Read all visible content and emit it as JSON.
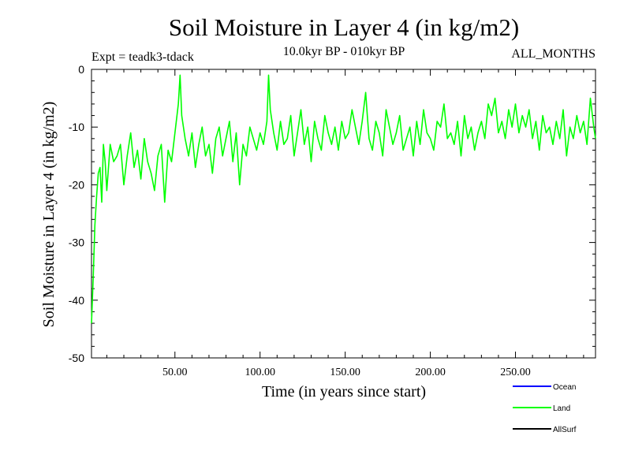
{
  "chart_data": {
    "type": "line",
    "title": "Soil Moisture in Layer 4 (in kg/m2)",
    "experiment_label": "Expt = teadk3-tdack",
    "period_label": "10.0kyr BP - 010kyr BP",
    "months_label": "ALL_MONTHS",
    "xlabel": "Time (in years since start)",
    "ylabel": "Soil Moisture in Layer 4 (in kg/m2)",
    "xlim": [
      1,
      297
    ],
    "ylim": [
      -50,
      0
    ],
    "x_ticks": [
      50,
      100,
      150,
      200,
      250
    ],
    "x_tick_labels": [
      "50.00",
      "100.00",
      "150.00",
      "200.00",
      "250.00"
    ],
    "y_ticks": [
      0,
      -10,
      -20,
      -30,
      -40,
      -50
    ],
    "y_tick_labels": [
      "0",
      "-10",
      "-20",
      "-30",
      "-40",
      "-50"
    ],
    "grid": false,
    "legend_position": "bottom-right",
    "series": [
      {
        "name": "Ocean",
        "color": "#0000ff",
        "x": [],
        "values": []
      },
      {
        "name": "Land",
        "color": "#00ff00",
        "x": [
          1,
          2,
          3,
          4,
          5,
          6,
          7,
          8,
          9,
          10,
          12,
          14,
          16,
          18,
          20,
          22,
          24,
          26,
          28,
          30,
          32,
          34,
          36,
          38,
          40,
          42,
          44,
          46,
          48,
          50,
          52,
          53,
          54,
          56,
          58,
          60,
          62,
          64,
          66,
          68,
          70,
          72,
          74,
          76,
          78,
          80,
          82,
          84,
          86,
          88,
          90,
          92,
          94,
          96,
          98,
          100,
          102,
          104,
          105,
          106,
          108,
          110,
          112,
          114,
          116,
          118,
          120,
          122,
          124,
          126,
          128,
          130,
          132,
          134,
          136,
          138,
          140,
          142,
          144,
          146,
          148,
          150,
          152,
          154,
          156,
          158,
          160,
          162,
          163,
          164,
          166,
          168,
          170,
          172,
          174,
          176,
          178,
          180,
          182,
          184,
          186,
          188,
          190,
          192,
          194,
          196,
          198,
          200,
          202,
          204,
          206,
          208,
          210,
          212,
          214,
          216,
          218,
          220,
          222,
          224,
          226,
          228,
          230,
          232,
          234,
          236,
          238,
          240,
          242,
          244,
          246,
          248,
          250,
          252,
          254,
          256,
          258,
          260,
          262,
          264,
          266,
          268,
          270,
          272,
          274,
          276,
          278,
          280,
          282,
          284,
          286,
          288,
          290,
          292,
          294,
          296,
          297
        ],
        "values": [
          -44,
          -36,
          -27,
          -22,
          -18,
          -17,
          -23,
          -13,
          -16,
          -21,
          -13,
          -16,
          -15,
          -13,
          -20,
          -15,
          -11,
          -17,
          -14,
          -19,
          -12,
          -16,
          -18,
          -21,
          -15,
          -13,
          -23,
          -14,
          -16,
          -11,
          -6,
          -1,
          -8,
          -12,
          -15,
          -11,
          -17,
          -13,
          -10,
          -15,
          -13,
          -18,
          -12,
          -10,
          -15,
          -12,
          -9,
          -16,
          -11,
          -20,
          -13,
          -15,
          -10,
          -12,
          -14,
          -11,
          -13,
          -9,
          -1,
          -7,
          -11,
          -14,
          -9,
          -13,
          -12,
          -8,
          -15,
          -11,
          -7,
          -13,
          -10,
          -16,
          -9,
          -12,
          -14,
          -8,
          -11,
          -13,
          -10,
          -14,
          -9,
          -12,
          -11,
          -7,
          -10,
          -13,
          -9,
          -4,
          -8,
          -12,
          -14,
          -9,
          -11,
          -15,
          -7,
          -10,
          -13,
          -11,
          -8,
          -14,
          -12,
          -10,
          -15,
          -9,
          -13,
          -7,
          -11,
          -12,
          -14,
          -9,
          -10,
          -6,
          -12,
          -11,
          -13,
          -9,
          -15,
          -8,
          -12,
          -10,
          -14,
          -11,
          -9,
          -12,
          -6,
          -8,
          -5,
          -11,
          -9,
          -12,
          -7,
          -10,
          -6,
          -11,
          -8,
          -10,
          -7,
          -12,
          -9,
          -14,
          -8,
          -11,
          -10,
          -13,
          -9,
          -12,
          -7,
          -15,
          -10,
          -12,
          -8,
          -11,
          -9,
          -13,
          -5,
          -10,
          -12
        ]
      },
      {
        "name": "AllSurf",
        "color": "#000000",
        "x": [],
        "values": []
      }
    ]
  }
}
